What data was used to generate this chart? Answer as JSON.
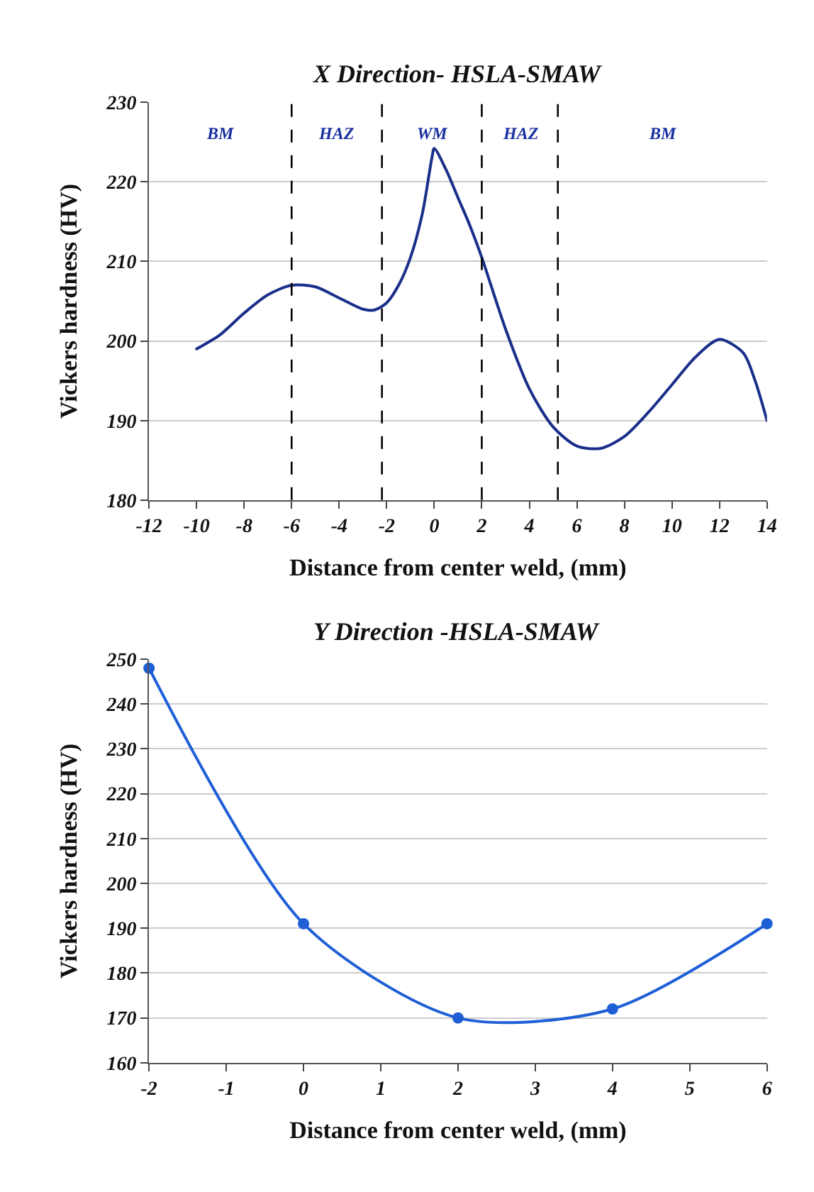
{
  "chart_data": [
    {
      "type": "line",
      "title": "X Direction- HSLA-SMAW",
      "xlabel": "Distance from center weld, (mm)",
      "ylabel": "Vickers hardness (HV)",
      "series": [
        {
          "color": "#1a2f8a",
          "x": [
            -10,
            -9,
            -8,
            -7,
            -6,
            -5,
            -4,
            -3,
            -2.5,
            -2,
            -1.5,
            -1,
            -0.5,
            -0.1,
            0,
            0.5,
            1,
            1.5,
            2,
            3,
            4,
            5,
            6,
            7,
            8,
            9,
            10,
            11,
            12,
            13,
            13.5,
            14
          ],
          "values": [
            199,
            200.8,
            203.5,
            205.8,
            207,
            206.8,
            205.4,
            204,
            203.9,
            204.8,
            207,
            210.5,
            216,
            223,
            224.2,
            221.5,
            218,
            214.5,
            210.5,
            201.5,
            194,
            189.2,
            186.8,
            186.5,
            188,
            191,
            194.5,
            198,
            200.2,
            198.5,
            195,
            190
          ]
        }
      ],
      "xlim": [
        -12,
        14
      ],
      "xticks": [
        -12,
        -10,
        -8,
        -6,
        -4,
        -2,
        0,
        2,
        4,
        6,
        8,
        10,
        12,
        14
      ],
      "ylim": [
        180,
        230
      ],
      "yticks": [
        180,
        190,
        200,
        210,
        220,
        230
      ],
      "grid": "y",
      "marker": "none",
      "line_style": "solid",
      "ref_lines": [
        {
          "axis": "x",
          "value": -6,
          "color": "#000000",
          "line_style": "dashed"
        },
        {
          "axis": "x",
          "value": -2.2,
          "color": "#000000",
          "line_style": "dashed"
        },
        {
          "axis": "x",
          "value": 2,
          "color": "#000000",
          "line_style": "dashed"
        },
        {
          "axis": "x",
          "value": 5.2,
          "color": "#000000",
          "line_style": "dashed"
        }
      ],
      "annotations": [
        "BM",
        "HAZ",
        "WM",
        "HAZ",
        "BM"
      ]
    },
    {
      "type": "line",
      "title": "Y Direction -HSLA-SMAW",
      "xlabel": "Distance from center weld, (mm)",
      "ylabel": "Vickers hardness (HV)",
      "series": [
        {
          "color": "#1f5fd6",
          "x": [
            -2,
            0,
            2,
            4,
            6
          ],
          "values": [
            248,
            191,
            170,
            172,
            191
          ]
        }
      ],
      "xlim": [
        -2,
        6
      ],
      "xticks": [
        -2,
        -1,
        0,
        1,
        2,
        3,
        4,
        5,
        6
      ],
      "ylim": [
        160,
        250
      ],
      "yticks": [
        160,
        170,
        180,
        190,
        200,
        210,
        220,
        230,
        240,
        250
      ],
      "grid": "y",
      "marker": "circle",
      "line_style": "solid"
    }
  ]
}
